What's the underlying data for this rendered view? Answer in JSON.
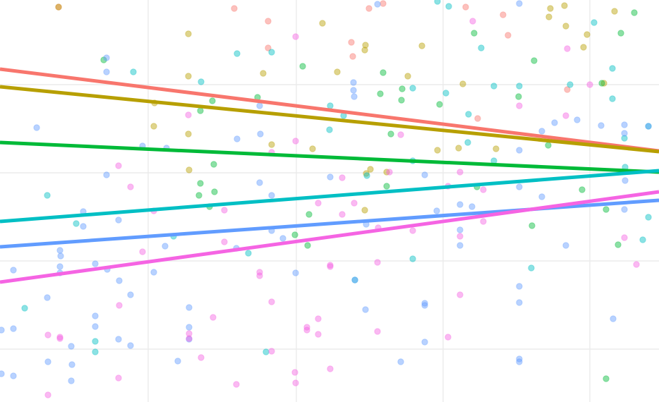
{
  "chart_data": {
    "type": "scatter",
    "title": "",
    "xlabel": "",
    "ylabel": "",
    "grid": true,
    "legend": "none",
    "xlim": [
      0,
      934
    ],
    "ylim": [
      -570,
      0
    ],
    "gridlines": {
      "x": [
        210,
        420,
        628,
        836
      ],
      "y": [
        -120,
        -245,
        -370,
        -495
      ]
    },
    "series": [
      {
        "color": "#F8766D",
        "trend": [
          [
            0,
            -98
          ],
          [
            934,
            -214
          ]
        ],
        "points": [
          [
            83,
            -10
          ],
          [
            332,
            -12
          ],
          [
            380,
            -30
          ],
          [
            523,
            -12
          ],
          [
            543,
            -5
          ],
          [
            660,
            -10
          ],
          [
            713,
            -21
          ],
          [
            720,
            -50
          ],
          [
            498,
            -60
          ],
          [
            380,
            -68
          ],
          [
            500,
            -80
          ],
          [
            677,
            -168
          ],
          [
            804,
            -127
          ]
        ]
      },
      {
        "color": "#B79F00",
        "trend": [
          [
            0,
            -123
          ],
          [
            934,
            -215
          ]
        ],
        "points": [
          [
            83,
            -10
          ],
          [
            267,
            -48
          ],
          [
            457,
            -33
          ],
          [
            518,
            -64
          ],
          [
            517,
            -71
          ],
          [
            598,
            -65
          ],
          [
            780,
            -12
          ],
          [
            800,
            -8
          ],
          [
            778,
            -24
          ],
          [
            871,
            -16
          ],
          [
            802,
            -37
          ],
          [
            832,
            -49
          ],
          [
            827,
            -67
          ],
          [
            267,
            -108
          ],
          [
            373,
            -104
          ],
          [
            478,
            -102
          ],
          [
            578,
            -108
          ],
          [
            219,
            -146
          ],
          [
            218,
            -179
          ],
          [
            267,
            -190
          ],
          [
            385,
            -205
          ],
          [
            443,
            -211
          ],
          [
            650,
            -210
          ],
          [
            703,
            -211
          ],
          [
            268,
            -241
          ],
          [
            519,
            -246
          ],
          [
            525,
            -240
          ],
          [
            548,
            -244
          ],
          [
            517,
            -298
          ],
          [
            656,
            -119
          ],
          [
            856,
            -118
          ],
          [
            620,
            -213
          ]
        ]
      },
      {
        "color": "#00BA38",
        "trend": [
          [
            0,
            -202
          ],
          [
            934,
            -244
          ]
        ],
        "points": [
          [
            147,
            -85
          ],
          [
            429,
            -94
          ],
          [
            543,
            -103
          ],
          [
            570,
            -126
          ],
          [
            539,
            -133
          ],
          [
            569,
            -142
          ],
          [
            365,
            -138
          ],
          [
            301,
            -143
          ],
          [
            284,
            -157
          ],
          [
            623,
            -148
          ],
          [
            735,
            -137
          ],
          [
            757,
            -86
          ],
          [
            554,
            -190
          ],
          [
            777,
            -206
          ],
          [
            284,
            -260
          ],
          [
            304,
            -272
          ],
          [
            303,
            -233
          ],
          [
            282,
            -277
          ],
          [
            297,
            -293
          ],
          [
            548,
            -264
          ],
          [
            676,
            -265
          ],
          [
            825,
            -269
          ],
          [
            438,
            -304
          ],
          [
            859,
            -297
          ],
          [
            876,
            -347
          ],
          [
            754,
            -320
          ],
          [
            418,
            -333
          ],
          [
            672,
            -47
          ],
          [
            880,
            -47
          ],
          [
            899,
            -18
          ],
          [
            853,
            -118
          ],
          [
            859,
            -537
          ],
          [
            436,
            -348
          ]
        ]
      },
      {
        "color": "#00BFC4",
        "trend": [
          [
            0,
            -314
          ],
          [
            934,
            -242
          ]
        ],
        "points": [
          [
            189,
            -102
          ],
          [
            285,
            -116
          ],
          [
            336,
            -76
          ],
          [
            385,
            -74
          ],
          [
            468,
            -150
          ],
          [
            467,
            -184
          ],
          [
            487,
            -164
          ],
          [
            585,
            -125
          ],
          [
            632,
            -132
          ],
          [
            664,
            -162
          ],
          [
            663,
            -202
          ],
          [
            682,
            -68
          ],
          [
            700,
            -122
          ],
          [
            736,
            -122
          ],
          [
            620,
            -2
          ],
          [
            636,
            -9
          ],
          [
            808,
            -120
          ],
          [
            842,
            -32
          ],
          [
            868,
            -97
          ],
          [
            919,
            -179
          ],
          [
            868,
            -140
          ],
          [
            885,
            -196
          ],
          [
            886,
            -237
          ],
          [
            700,
            -228
          ],
          [
            585,
            -228
          ],
          [
            67,
            -277
          ],
          [
            108,
            -317
          ],
          [
            246,
            -335
          ],
          [
            352,
            -359
          ],
          [
            520,
            -249
          ],
          [
            585,
            -367
          ],
          [
            503,
            -397
          ],
          [
            35,
            -437
          ],
          [
            135,
            -484
          ],
          [
            135,
            -499
          ],
          [
            377,
            -499
          ],
          [
            919,
            -308
          ],
          [
            911,
            -340
          ],
          [
            753,
            -380
          ]
        ]
      },
      {
        "color": "#619CFF",
        "trend": [
          [
            0,
            -350
          ],
          [
            934,
            -284
          ]
        ],
        "points": [
          [
            535,
            -6
          ],
          [
            736,
            -5
          ],
          [
            151,
            -82
          ],
          [
            151,
            -102
          ],
          [
            501,
            -117
          ],
          [
            501,
            -128
          ],
          [
            502,
            -137
          ],
          [
            52,
            -181
          ],
          [
            368,
            -150
          ],
          [
            369,
            -190
          ],
          [
            336,
            -197
          ],
          [
            236,
            -210
          ],
          [
            202,
            -207
          ],
          [
            151,
            -248
          ],
          [
            368,
            -259
          ],
          [
            385,
            -277
          ],
          [
            468,
            -251
          ],
          [
            602,
            -248
          ],
          [
            736,
            -213
          ],
          [
            768,
            -186
          ],
          [
            786,
            -174
          ],
          [
            818,
            -170
          ],
          [
            852,
            -178
          ],
          [
            885,
            -177
          ],
          [
            885,
            -189
          ],
          [
            919,
            -179
          ],
          [
            736,
            -265
          ],
          [
            768,
            -279
          ],
          [
            886,
            -256
          ],
          [
            885,
            -297
          ],
          [
            652,
            -290
          ],
          [
            669,
            -293
          ],
          [
            619,
            -299
          ],
          [
            118,
            -300
          ],
          [
            118,
            -321
          ],
          [
            168,
            -312
          ],
          [
            234,
            -349
          ],
          [
            385,
            -327
          ],
          [
            401,
            -338
          ],
          [
            519,
            -318
          ],
          [
            652,
            -326
          ],
          [
            652,
            -348
          ],
          [
            802,
            -348
          ],
          [
            85,
            -355
          ],
          [
            86,
            -363
          ],
          [
            19,
            -383
          ],
          [
            85,
            -378
          ],
          [
            85,
            -387
          ],
          [
            135,
            -374
          ],
          [
            152,
            -382
          ],
          [
            218,
            -386
          ],
          [
            335,
            -352
          ],
          [
            419,
            -387
          ],
          [
            169,
            -398
          ],
          [
            185,
            -418
          ],
          [
            67,
            -422
          ],
          [
            268,
            -436
          ],
          [
            503,
            -397
          ],
          [
            518,
            -439
          ],
          [
            602,
            -430
          ],
          [
            602,
            -433
          ],
          [
            736,
            -406
          ],
          [
            736,
            -429
          ],
          [
            869,
            -452
          ],
          [
            2,
            -468
          ],
          [
            19,
            -466
          ],
          [
            135,
            -448
          ],
          [
            135,
            -463
          ],
          [
            268,
            -464
          ],
          [
            268,
            -481
          ],
          [
            168,
            -481
          ],
          [
            185,
            -490
          ],
          [
            101,
            -491
          ],
          [
            68,
            -513
          ],
          [
            102,
            -517
          ],
          [
            252,
            -512
          ],
          [
            568,
            -513
          ],
          [
            602,
            -485
          ],
          [
            736,
            -509
          ],
          [
            736,
            -513
          ],
          [
            2,
            -530
          ],
          [
            19,
            -533
          ],
          [
            101,
            -540
          ]
        ]
      },
      {
        "color": "#F564E3",
        "trend": [
          [
            0,
            -400
          ],
          [
            934,
            -272
          ]
        ],
        "points": [
          [
            419,
            -52
          ],
          [
            670,
            -30
          ],
          [
            804,
            -69
          ],
          [
            267,
            -163
          ],
          [
            385,
            -216
          ],
          [
            419,
            -200
          ],
          [
            318,
            -298
          ],
          [
            168,
            -235
          ],
          [
            185,
            -265
          ],
          [
            218,
            -299
          ],
          [
            451,
            -288
          ],
          [
            485,
            -252
          ],
          [
            552,
            -244
          ],
          [
            568,
            -191
          ],
          [
            652,
            -244
          ],
          [
            736,
            -150
          ],
          [
            802,
            -164
          ],
          [
            685,
            -269
          ],
          [
            635,
            -264
          ],
          [
            502,
            -288
          ],
          [
            485,
            -304
          ],
          [
            536,
            -323
          ],
          [
            585,
            -327
          ],
          [
            652,
            -335
          ],
          [
            685,
            -314
          ],
          [
            318,
            -343
          ],
          [
            202,
            -357
          ],
          [
            368,
            -386
          ],
          [
            368,
            -391
          ],
          [
            468,
            -376
          ],
          [
            468,
            -378
          ],
          [
            535,
            -372
          ],
          [
            902,
            -375
          ],
          [
            885,
            -337
          ],
          [
            169,
            -433
          ],
          [
            385,
            -428
          ],
          [
            302,
            -450
          ],
          [
            268,
            -473
          ],
          [
            268,
            -480
          ],
          [
            435,
            -464
          ],
          [
            435,
            -468
          ],
          [
            451,
            -452
          ],
          [
            451,
            -474
          ],
          [
            535,
            -470
          ],
          [
            635,
            -478
          ],
          [
            652,
            -418
          ],
          [
            68,
            -475
          ],
          [
            85,
            -478
          ],
          [
            85,
            -480
          ],
          [
            285,
            -507
          ],
          [
            385,
            -498
          ],
          [
            168,
            -536
          ],
          [
            335,
            -545
          ],
          [
            418,
            -528
          ],
          [
            419,
            -543
          ],
          [
            468,
            -523
          ],
          [
            68,
            -560
          ],
          [
            836,
            -120
          ]
        ]
      }
    ]
  }
}
